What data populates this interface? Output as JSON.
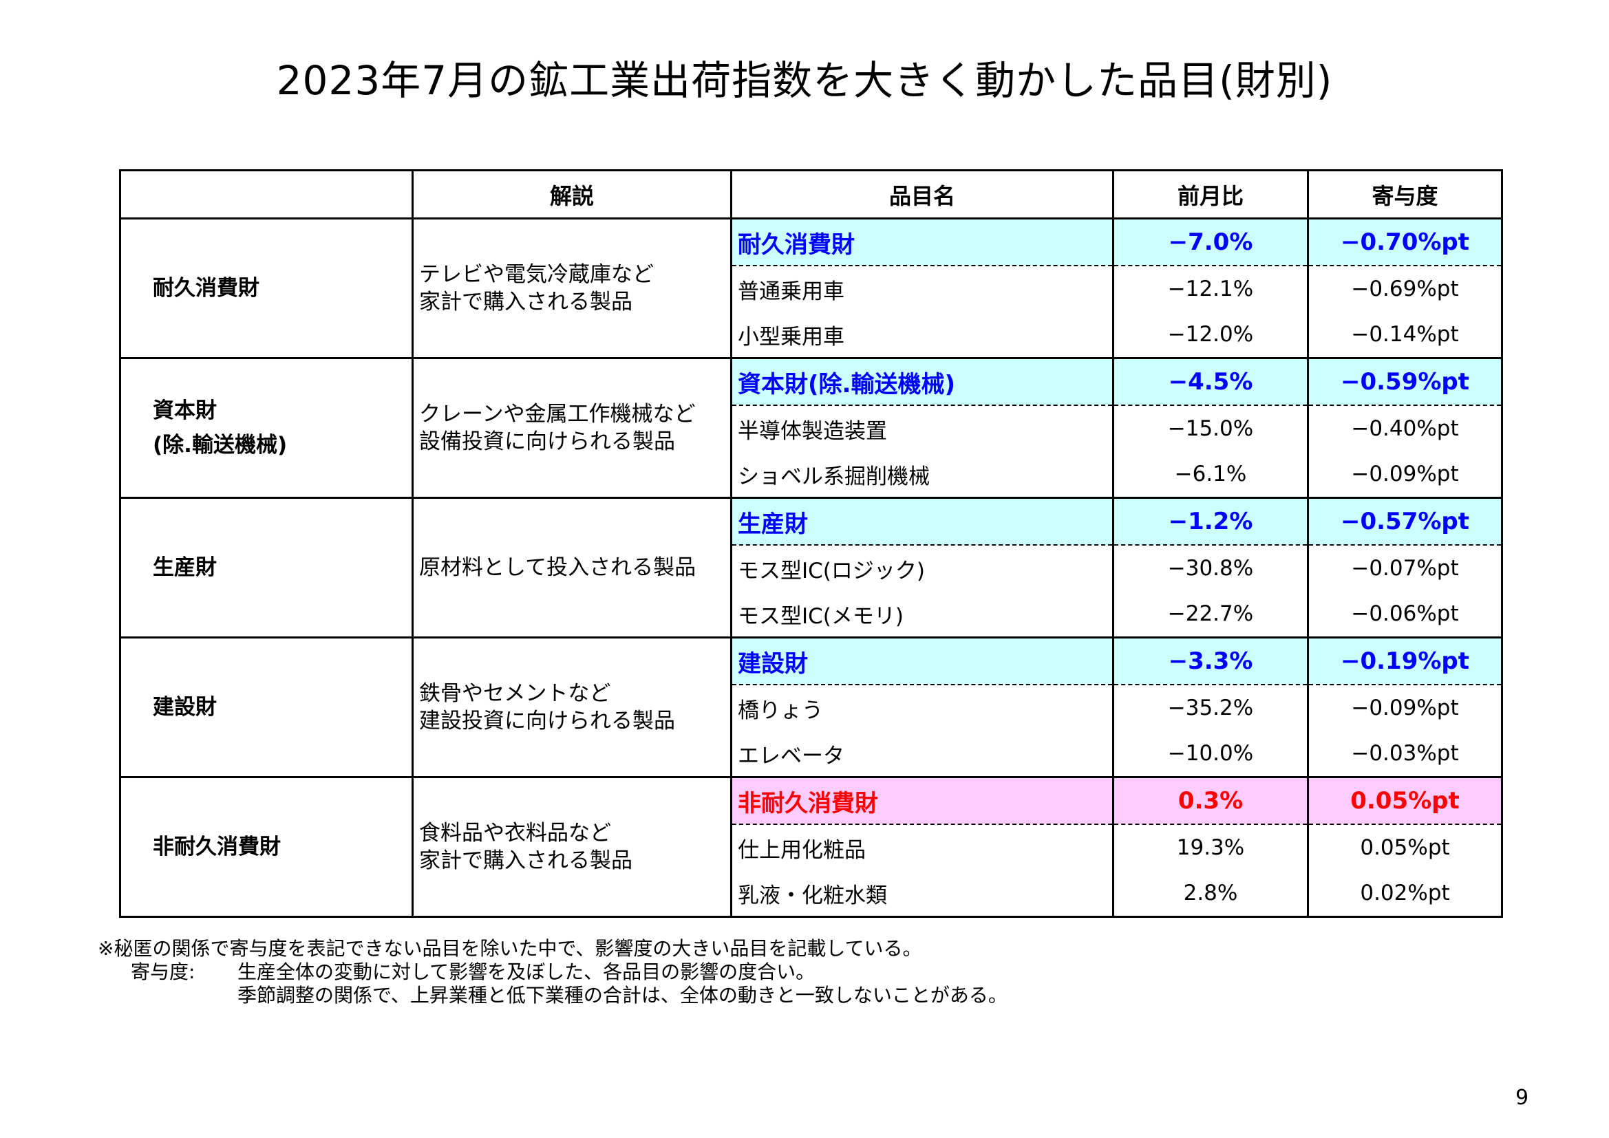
{
  "title": "2023年7月の鉱工業出荷指数を大きく動かした品目(財別)",
  "table": {
    "headers": {
      "category": "",
      "description": "解説",
      "item": "品目名",
      "mom": "前月比",
      "contribution": "寄与度"
    },
    "groups": [
      {
        "category": "耐久消費財",
        "description_lines": [
          "テレビや電気冷蔵庫など",
          "家計で購入される製品"
        ],
        "summary": {
          "name": "耐久消費財",
          "mom": "−7.0%",
          "contribution": "−0.70%pt",
          "color": "#0000ff",
          "bg": "#ccffff"
        },
        "items": [
          {
            "name": "普通乗用車",
            "mom": "−12.1%",
            "contribution": "−0.69%pt"
          },
          {
            "name": "小型乗用車",
            "mom": "−12.0%",
            "contribution": "−0.14%pt"
          }
        ]
      },
      {
        "category": "資本財",
        "category_sub": "(除.輸送機械)",
        "description_lines": [
          "クレーンや金属工作機械など",
          "設備投資に向けられる製品"
        ],
        "summary": {
          "name": "資本財(除.輸送機械)",
          "mom": "−4.5%",
          "contribution": "−0.59%pt",
          "color": "#0000ff",
          "bg": "#ccffff"
        },
        "items": [
          {
            "name": "半導体製造装置",
            "mom": "−15.0%",
            "contribution": "−0.40%pt"
          },
          {
            "name": "ショベル系掘削機械",
            "mom": "−6.1%",
            "contribution": "−0.09%pt"
          }
        ]
      },
      {
        "category": "生産財",
        "description_lines": [
          "原材料として投入される製品"
        ],
        "summary": {
          "name": "生産財",
          "mom": "−1.2%",
          "contribution": "−0.57%pt",
          "color": "#0000ff",
          "bg": "#ccffff"
        },
        "items": [
          {
            "name": "モス型IC(ロジック)",
            "mom": "−30.8%",
            "contribution": "−0.07%pt"
          },
          {
            "name": "モス型IC(メモリ)",
            "mom": "−22.7%",
            "contribution": "−0.06%pt"
          }
        ]
      },
      {
        "category": "建設財",
        "description_lines": [
          "鉄骨やセメントなど",
          "建設投資に向けられる製品"
        ],
        "summary": {
          "name": "建設財",
          "mom": "−3.3%",
          "contribution": "−0.19%pt",
          "color": "#0000ff",
          "bg": "#ccffff"
        },
        "items": [
          {
            "name": "橋りょう",
            "mom": "−35.2%",
            "contribution": "−0.09%pt"
          },
          {
            "name": "エレベータ",
            "mom": "−10.0%",
            "contribution": "−0.03%pt"
          }
        ]
      },
      {
        "category": "非耐久消費財",
        "description_lines": [
          "食料品や衣料品など",
          "家計で購入される製品"
        ],
        "summary": {
          "name": "非耐久消費財",
          "mom": "0.3%",
          "contribution": "0.05%pt",
          "color": "#ff0000",
          "bg": "#ffccff"
        },
        "items": [
          {
            "name": "仕上用化粧品",
            "mom": "19.3%",
            "contribution": "0.05%pt"
          },
          {
            "name": "乳液・化粧水類",
            "mom": "2.8%",
            "contribution": "0.02%pt"
          }
        ]
      }
    ]
  },
  "notes": {
    "line1": "※秘匿の関係で寄与度を表記できない品目を除いた中で、影響度の大きい品目を記載している。",
    "term": "寄与度:",
    "line2": "生産全体の変動に対して影響を及ぼした、各品目の影響の度合い。",
    "line3": "季節調整の関係で、上昇業種と低下業種の合計は、全体の動きと一致しないことがある。"
  },
  "page_number": "9"
}
